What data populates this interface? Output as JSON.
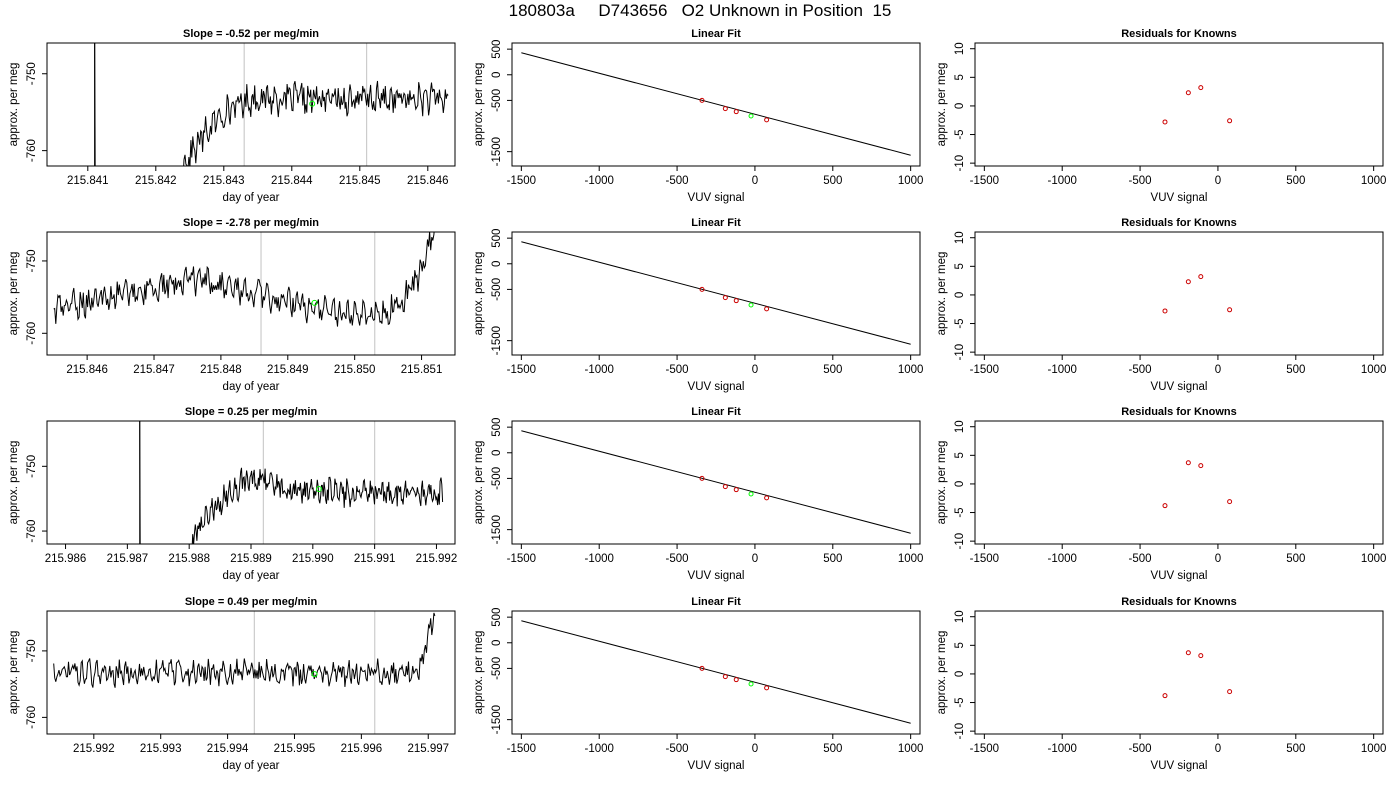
{
  "page_title": "180803a     D743656   O2 Unknown in Position  15",
  "colors": {
    "trace": "#000000",
    "marker": "#00ff00",
    "residual_points": "#cc0000",
    "cycle_lines": "#cccccc",
    "fit_line": "#000000"
  },
  "chart_data": [
    {
      "type": "line",
      "title": "Slope =  -0.52  per meg/min",
      "xlabel": "day of year",
      "ylabel": "approx. per meg",
      "xlim": [
        215.8404,
        215.8464
      ],
      "ylim": [
        -762,
        -746
      ],
      "xticks": [
        "215.841",
        "215.842",
        "215.843",
        "215.844",
        "215.845",
        "215.846"
      ],
      "yticks": [
        "-750",
        "-760"
      ],
      "grid": false,
      "vlines_grey": [
        215.8433,
        215.8451
      ],
      "vline_black": 215.8411,
      "marker": [
        215.8443,
        -753.9
      ],
      "trace": {
        "x_start": 215.8411,
        "x_end": 215.8463,
        "points": [
          [
            215.8411,
            -740
          ],
          [
            215.8411,
            -780
          ],
          [
            215.8419,
            -775
          ],
          [
            215.8424,
            -762
          ],
          [
            215.8425,
            -760.6
          ],
          [
            215.8427,
            -758.1
          ],
          [
            215.843,
            -755
          ],
          [
            215.8433,
            -753.6
          ],
          [
            215.8435,
            -753.2
          ],
          [
            215.844,
            -753.3
          ],
          [
            215.8445,
            -753.3
          ],
          [
            215.8449,
            -753.3
          ],
          [
            215.8455,
            -753.3
          ],
          [
            215.8463,
            -753.3
          ]
        ],
        "noise": 1.6
      }
    },
    {
      "type": "line",
      "title": "Linear Fit",
      "xlabel": "VUV signal",
      "ylabel": "approx. per meg",
      "xlim": [
        -1560,
        1060
      ],
      "ylim": [
        -1780,
        620
      ],
      "xticks": [
        "-1500",
        "-1000",
        "-500",
        "0",
        "500",
        "1000"
      ],
      "yticks": [
        "500",
        "0",
        "-500",
        "-1500"
      ],
      "fit_line": [
        [
          -1500,
          430
        ],
        [
          1000,
          -1570
        ]
      ],
      "known_points": [
        [
          -340,
          -500
        ],
        [
          -190,
          -660
        ],
        [
          -120,
          -720
        ],
        [
          75,
          -880
        ]
      ],
      "unknown_point": [
        -25,
        -805
      ]
    },
    {
      "type": "scatter",
      "title": "Residuals for Knowns",
      "xlabel": "VUV signal",
      "ylabel": "approx. per meg",
      "xlim": [
        -1560,
        1060
      ],
      "ylim": [
        -10.5,
        11
      ],
      "xticks": [
        "-1500",
        "-1000",
        "-500",
        "0",
        "500",
        "1000"
      ],
      "yticks": [
        "10",
        "5",
        "0",
        "-5",
        "-10"
      ],
      "points": [
        [
          -340,
          -2.8
        ],
        [
          -190,
          2.3
        ],
        [
          -110,
          3.2
        ],
        [
          75,
          -2.6
        ]
      ]
    },
    {
      "type": "line",
      "title": "Slope =  -2.78  per meg/min",
      "xlabel": "day of year",
      "ylabel": "approx. per meg",
      "xlim": [
        215.8454,
        215.8515
      ],
      "ylim": [
        -763,
        -746
      ],
      "xticks": [
        "215.846",
        "215.847",
        "215.848",
        "215.849",
        "215.850",
        "215.851"
      ],
      "yticks": [
        "-750",
        "-760"
      ],
      "grid": false,
      "vlines_grey": [
        215.8486,
        215.8503
      ],
      "marker": [
        215.8494,
        -755.8
      ],
      "trace": {
        "x_start": 215.8455,
        "x_end": 215.8512,
        "points": [
          [
            215.8455,
            -756.6
          ],
          [
            215.846,
            -755.6
          ],
          [
            215.8465,
            -754.6
          ],
          [
            215.847,
            -753.8
          ],
          [
            215.8475,
            -752.8
          ],
          [
            215.848,
            -753.3
          ],
          [
            215.8485,
            -754.6
          ],
          [
            215.849,
            -755.6
          ],
          [
            215.8495,
            -756.8
          ],
          [
            215.85,
            -757.1
          ],
          [
            215.8505,
            -756.8
          ],
          [
            215.8507,
            -755.6
          ],
          [
            215.8509,
            -753.3
          ],
          [
            215.8511,
            -748.5
          ],
          [
            215.8512,
            -746
          ]
        ],
        "noise": 1.6
      }
    },
    {
      "type": "line",
      "title": "Linear Fit",
      "xlabel": "VUV signal",
      "ylabel": "approx. per meg",
      "xlim": [
        -1560,
        1060
      ],
      "ylim": [
        -1780,
        620
      ],
      "xticks": [
        "-1500",
        "-1000",
        "-500",
        "0",
        "500",
        "1000"
      ],
      "yticks": [
        "500",
        "0",
        "-500",
        "-1500"
      ],
      "fit_line": [
        [
          -1500,
          430
        ],
        [
          1000,
          -1570
        ]
      ],
      "known_points": [
        [
          -340,
          -500
        ],
        [
          -190,
          -660
        ],
        [
          -120,
          -720
        ],
        [
          75,
          -880
        ]
      ],
      "unknown_point": [
        -25,
        -805
      ]
    },
    {
      "type": "scatter",
      "title": "Residuals for Knowns",
      "xlabel": "VUV signal",
      "ylabel": "approx. per meg",
      "xlim": [
        -1560,
        1060
      ],
      "ylim": [
        -10.5,
        11
      ],
      "xticks": [
        "-1500",
        "-1000",
        "-500",
        "0",
        "500",
        "1000"
      ],
      "yticks": [
        "10",
        "5",
        "0",
        "-5",
        "-10"
      ],
      "points": [
        [
          -340,
          -2.8
        ],
        [
          -190,
          2.3
        ],
        [
          -110,
          3.2
        ],
        [
          75,
          -2.6
        ]
      ]
    },
    {
      "type": "line",
      "title": "Slope =  0.25  per meg/min",
      "xlabel": "day of year",
      "ylabel": "approx. per meg",
      "xlim": [
        215.9857,
        215.9923
      ],
      "ylim": [
        -762,
        -743
      ],
      "xticks": [
        "215.986",
        "215.987",
        "215.988",
        "215.989",
        "215.990",
        "215.991",
        "215.992"
      ],
      "yticks": [
        "-750",
        "-760"
      ],
      "grid": false,
      "vlines_grey": [
        215.9892,
        215.991
      ],
      "vline_black": 215.9872,
      "marker": [
        215.9901,
        -753.5
      ],
      "trace": {
        "x_start": 215.9872,
        "x_end": 215.9921,
        "points": [
          [
            215.9872,
            -742
          ],
          [
            215.9872,
            -780
          ],
          [
            215.9876,
            -775
          ],
          [
            215.9881,
            -760.7
          ],
          [
            215.9883,
            -757.5
          ],
          [
            215.9886,
            -754.5
          ],
          [
            215.9889,
            -752.2
          ],
          [
            215.9892,
            -752.2
          ],
          [
            215.9896,
            -753.8
          ],
          [
            215.99,
            -753.8
          ],
          [
            215.9905,
            -754.1
          ],
          [
            215.991,
            -754.1
          ],
          [
            215.9915,
            -754.1
          ],
          [
            215.9921,
            -754.1
          ]
        ],
        "noise": 1.6
      }
    },
    {
      "type": "line",
      "title": "Linear Fit",
      "xlabel": "VUV signal",
      "ylabel": "approx. per meg",
      "xlim": [
        -1560,
        1060
      ],
      "ylim": [
        -1780,
        620
      ],
      "xticks": [
        "-1500",
        "-1000",
        "-500",
        "0",
        "500",
        "1000"
      ],
      "yticks": [
        "500",
        "0",
        "-500",
        "-1500"
      ],
      "fit_line": [
        [
          -1500,
          430
        ],
        [
          1000,
          -1570
        ]
      ],
      "known_points": [
        [
          -340,
          -500
        ],
        [
          -190,
          -660
        ],
        [
          -120,
          -720
        ],
        [
          75,
          -880
        ]
      ],
      "unknown_point": [
        -25,
        -805
      ]
    },
    {
      "type": "scatter",
      "title": "Residuals for Knowns",
      "xlabel": "VUV signal",
      "ylabel": "approx. per meg",
      "xlim": [
        -1560,
        1060
      ],
      "ylim": [
        -10.5,
        11
      ],
      "xticks": [
        "-1500",
        "-1000",
        "-500",
        "0",
        "500",
        "1000"
      ],
      "yticks": [
        "10",
        "5",
        "0",
        "-5",
        "-10"
      ],
      "points": [
        [
          -340,
          -3.8
        ],
        [
          -190,
          3.7
        ],
        [
          -110,
          3.2
        ],
        [
          75,
          -3.1
        ]
      ]
    },
    {
      "type": "line",
      "title": "Slope =  0.49  per meg/min",
      "xlabel": "day of year",
      "ylabel": "approx. per meg",
      "xlim": [
        215.9913,
        215.9974
      ],
      "ylim": [
        -762.5,
        -744
      ],
      "xticks": [
        "215.992",
        "215.993",
        "215.994",
        "215.995",
        "215.996",
        "215.997"
      ],
      "yticks": [
        "-750",
        "-760"
      ],
      "grid": false,
      "vlines_grey": [
        215.9944,
        215.9962
      ],
      "marker": [
        215.9953,
        -753.5
      ],
      "trace": {
        "x_start": 215.9914,
        "x_end": 215.9971,
        "points": [
          [
            215.9914,
            -753.3
          ],
          [
            215.992,
            -753.3
          ],
          [
            215.993,
            -753.3
          ],
          [
            215.994,
            -753.3
          ],
          [
            215.995,
            -753.3
          ],
          [
            215.996,
            -753.3
          ],
          [
            215.9967,
            -753.3
          ],
          [
            215.9969,
            -752
          ],
          [
            215.997,
            -748
          ],
          [
            215.9971,
            -744
          ]
        ],
        "noise": 1.5
      }
    },
    {
      "type": "line",
      "title": "Linear Fit",
      "xlabel": "VUV signal",
      "ylabel": "approx. per meg",
      "xlim": [
        -1560,
        1060
      ],
      "ylim": [
        -1780,
        620
      ],
      "xticks": [
        "-1500",
        "-1000",
        "-500",
        "0",
        "500",
        "1000"
      ],
      "yticks": [
        "500",
        "0",
        "-500",
        "-1500"
      ],
      "fit_line": [
        [
          -1500,
          430
        ],
        [
          1000,
          -1570
        ]
      ],
      "known_points": [
        [
          -340,
          -500
        ],
        [
          -190,
          -660
        ],
        [
          -120,
          -720
        ],
        [
          75,
          -880
        ]
      ],
      "unknown_point": [
        -25,
        -805
      ]
    },
    {
      "type": "scatter",
      "title": "Residuals for Knowns",
      "xlabel": "VUV signal",
      "ylabel": "approx. per meg",
      "xlim": [
        -1560,
        1060
      ],
      "ylim": [
        -10.5,
        11
      ],
      "xticks": [
        "-1500",
        "-1000",
        "-500",
        "0",
        "500",
        "1000"
      ],
      "yticks": [
        "10",
        "5",
        "0",
        "-5",
        "-10"
      ],
      "points": [
        [
          -340,
          -3.8
        ],
        [
          -190,
          3.7
        ],
        [
          -110,
          3.2
        ],
        [
          75,
          -3.1
        ]
      ]
    }
  ]
}
